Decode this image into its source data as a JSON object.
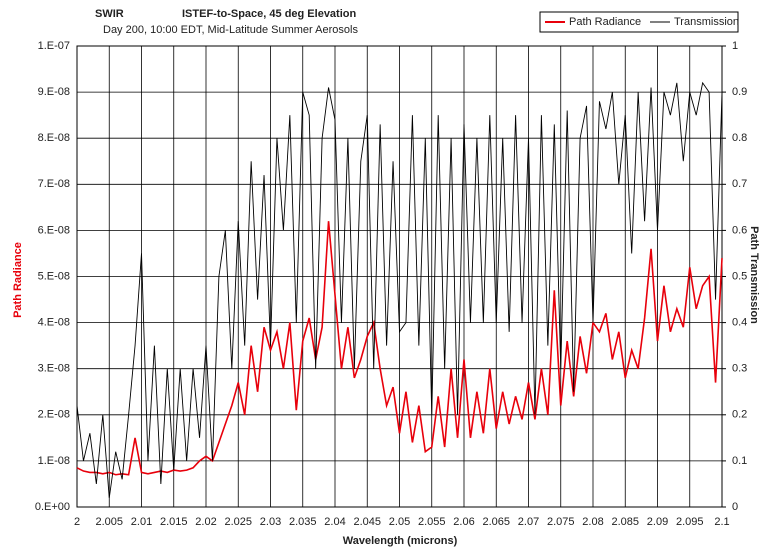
{
  "chart_data": {
    "type": "line",
    "title": "SWIR",
    "title2": "ISTEF-to-Space, 45 deg Elevation",
    "subtitle": "Day 200, 10:00 EDT, Mid-Latitude Summer Aerosols",
    "x_label": "Wavelength (microns)",
    "y_label": "Path Radiance",
    "y2_label": "Path Transmission",
    "grid": true,
    "legend": "top-right",
    "x": [
      2,
      2.001,
      2.002,
      2.003,
      2.004,
      2.005,
      2.006,
      2.007,
      2.008,
      2.009,
      2.01,
      2.011,
      2.012,
      2.013,
      2.014,
      2.015,
      2.016,
      2.017,
      2.018,
      2.019,
      2.02,
      2.021,
      2.022,
      2.023,
      2.024,
      2.025,
      2.026,
      2.027,
      2.028,
      2.029,
      2.03,
      2.031,
      2.032,
      2.033,
      2.034,
      2.035,
      2.036,
      2.037,
      2.038,
      2.039,
      2.04,
      2.041,
      2.042,
      2.043,
      2.044,
      2.045,
      2.046,
      2.047,
      2.048,
      2.049,
      2.05,
      2.051,
      2.052,
      2.053,
      2.054,
      2.055,
      2.056,
      2.057,
      2.058,
      2.059,
      2.06,
      2.061,
      2.062,
      2.063,
      2.064,
      2.065,
      2.066,
      2.067,
      2.068,
      2.069,
      2.07,
      2.071,
      2.072,
      2.073,
      2.074,
      2.075,
      2.076,
      2.077,
      2.078,
      2.079,
      2.08,
      2.081,
      2.082,
      2.083,
      2.084,
      2.085,
      2.086,
      2.087,
      2.088,
      2.089,
      2.09,
      2.091,
      2.092,
      2.093,
      2.094,
      2.095,
      2.096,
      2.097,
      2.098,
      2.099,
      2.1
    ],
    "series": [
      {
        "name": "Path Radiance",
        "color": "#e8000b",
        "axis": "y",
        "values": [
          8.5e-09,
          7.8e-09,
          7.5e-09,
          7.5e-09,
          7.2e-09,
          7.5e-09,
          7e-09,
          7.2e-09,
          7e-09,
          1.5e-08,
          7.5e-09,
          7.2e-09,
          7.5e-09,
          7.8e-09,
          7.5e-09,
          8e-09,
          7.8e-09,
          8e-09,
          8.5e-09,
          1e-08,
          1.1e-08,
          1e-08,
          1.4e-08,
          1.8e-08,
          2.2e-08,
          2.7e-08,
          2e-08,
          3.5e-08,
          2.5e-08,
          3.9e-08,
          3.4e-08,
          3.8e-08,
          3e-08,
          4e-08,
          2.1e-08,
          3.6e-08,
          4.1e-08,
          3.2e-08,
          3.9e-08,
          6.2e-08,
          4.6e-08,
          3e-08,
          3.9e-08,
          2.8e-08,
          3.2e-08,
          3.7e-08,
          4e-08,
          3e-08,
          2.2e-08,
          2.6e-08,
          1.6e-08,
          2.5e-08,
          1.4e-08,
          2.2e-08,
          1.2e-08,
          1.3e-08,
          2.4e-08,
          1.3e-08,
          3e-08,
          1.5e-08,
          3.2e-08,
          1.5e-08,
          2.5e-08,
          1.6e-08,
          3e-08,
          1.7e-08,
          2.5e-08,
          1.8e-08,
          2.4e-08,
          1.9e-08,
          2.7e-08,
          1.9e-08,
          3e-08,
          2e-08,
          4.7e-08,
          2.2e-08,
          3.6e-08,
          2.4e-08,
          3.7e-08,
          2.9e-08,
          4e-08,
          3.8e-08,
          4.2e-08,
          3.2e-08,
          3.8e-08,
          2.8e-08,
          3.4e-08,
          3e-08,
          4.1e-08,
          5.6e-08,
          3.6e-08,
          4.8e-08,
          3.8e-08,
          4.3e-08,
          3.9e-08,
          5.2e-08,
          4.3e-08,
          4.8e-08,
          5e-08,
          2.7e-08,
          5.4e-08
        ]
      },
      {
        "name": "Transmission",
        "color": "#000000",
        "axis": "y2",
        "values": [
          0.22,
          0.1,
          0.16,
          0.05,
          0.2,
          0.02,
          0.12,
          0.06,
          0.2,
          0.35,
          0.55,
          0.1,
          0.35,
          0.05,
          0.3,
          0.08,
          0.3,
          0.1,
          0.3,
          0.15,
          0.35,
          0.1,
          0.5,
          0.6,
          0.3,
          0.62,
          0.35,
          0.75,
          0.45,
          0.72,
          0.35,
          0.8,
          0.6,
          0.85,
          0.4,
          0.9,
          0.85,
          0.3,
          0.8,
          0.91,
          0.84,
          0.4,
          0.8,
          0.3,
          0.75,
          0.85,
          0.3,
          0.83,
          0.35,
          0.75,
          0.38,
          0.4,
          0.85,
          0.35,
          0.8,
          0.2,
          0.85,
          0.3,
          0.8,
          0.2,
          0.83,
          0.4,
          0.8,
          0.4,
          0.85,
          0.4,
          0.8,
          0.38,
          0.85,
          0.4,
          0.8,
          0.2,
          0.85,
          0.35,
          0.83,
          0.3,
          0.86,
          0.25,
          0.8,
          0.87,
          0.4,
          0.88,
          0.82,
          0.9,
          0.7,
          0.85,
          0.55,
          0.9,
          0.62,
          0.91,
          0.6,
          0.9,
          0.85,
          0.92,
          0.75,
          0.9,
          0.85,
          0.92,
          0.9,
          0.45,
          0.9
        ]
      }
    ],
    "xlim": [
      2,
      2.1
    ],
    "xticks": [
      2,
      2.005,
      2.01,
      2.015,
      2.02,
      2.025,
      2.03,
      2.035,
      2.04,
      2.045,
      2.05,
      2.055,
      2.06,
      2.065,
      2.07,
      2.075,
      2.08,
      2.085,
      2.09,
      2.095,
      2.1
    ],
    "ylim": [
      0,
      1e-07
    ],
    "yticks": [
      {
        "value": 0,
        "label": "0.E+00"
      },
      {
        "value": 1e-08,
        "label": "1.E-08"
      },
      {
        "value": 2e-08,
        "label": "2.E-08"
      },
      {
        "value": 3e-08,
        "label": "3.E-08"
      },
      {
        "value": 4e-08,
        "label": "4.E-08"
      },
      {
        "value": 5e-08,
        "label": "5.E-08"
      },
      {
        "value": 6e-08,
        "label": "6.E-08"
      },
      {
        "value": 7e-08,
        "label": "7.E-08"
      },
      {
        "value": 8e-08,
        "label": "8.E-08"
      },
      {
        "value": 9e-08,
        "label": "9.E-08"
      },
      {
        "value": 1e-07,
        "label": "1.E-07"
      }
    ],
    "y2lim": [
      0,
      1
    ],
    "y2ticks": [
      0,
      0.1,
      0.2,
      0.3,
      0.4,
      0.5,
      0.6,
      0.7,
      0.8,
      0.9,
      1
    ]
  }
}
